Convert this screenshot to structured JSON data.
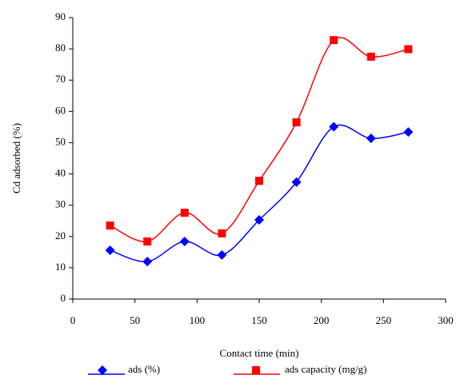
{
  "chart_data": {
    "type": "line",
    "x_label": "Contact time (min)",
    "y_label": "Cd adsorbed (%)",
    "x": [
      30,
      60,
      90,
      120,
      150,
      180,
      210,
      240,
      270
    ],
    "series": [
      {
        "name": "ads (%)",
        "color": "#0000ff",
        "marker": "diamond",
        "values": [
          15.6,
          12,
          18.4,
          14.1,
          25.3,
          37.4,
          55.1,
          51.4,
          53.4
        ]
      },
      {
        "name": "ads  capacity  (mg/g)",
        "color": "#ff0000",
        "marker": "square",
        "values": [
          23.5,
          18.4,
          27.6,
          21,
          37.8,
          56.5,
          82.8,
          77.5,
          79.9
        ]
      }
    ],
    "xlim": [
      0,
      300
    ],
    "xticks": [
      0,
      50,
      100,
      150,
      200,
      250,
      300
    ],
    "ylim": [
      0,
      90
    ],
    "yticks": [
      0,
      10,
      20,
      30,
      40,
      50,
      60,
      70,
      80,
      90
    ],
    "smooth": true,
    "grid": false,
    "legend": "bottom"
  }
}
